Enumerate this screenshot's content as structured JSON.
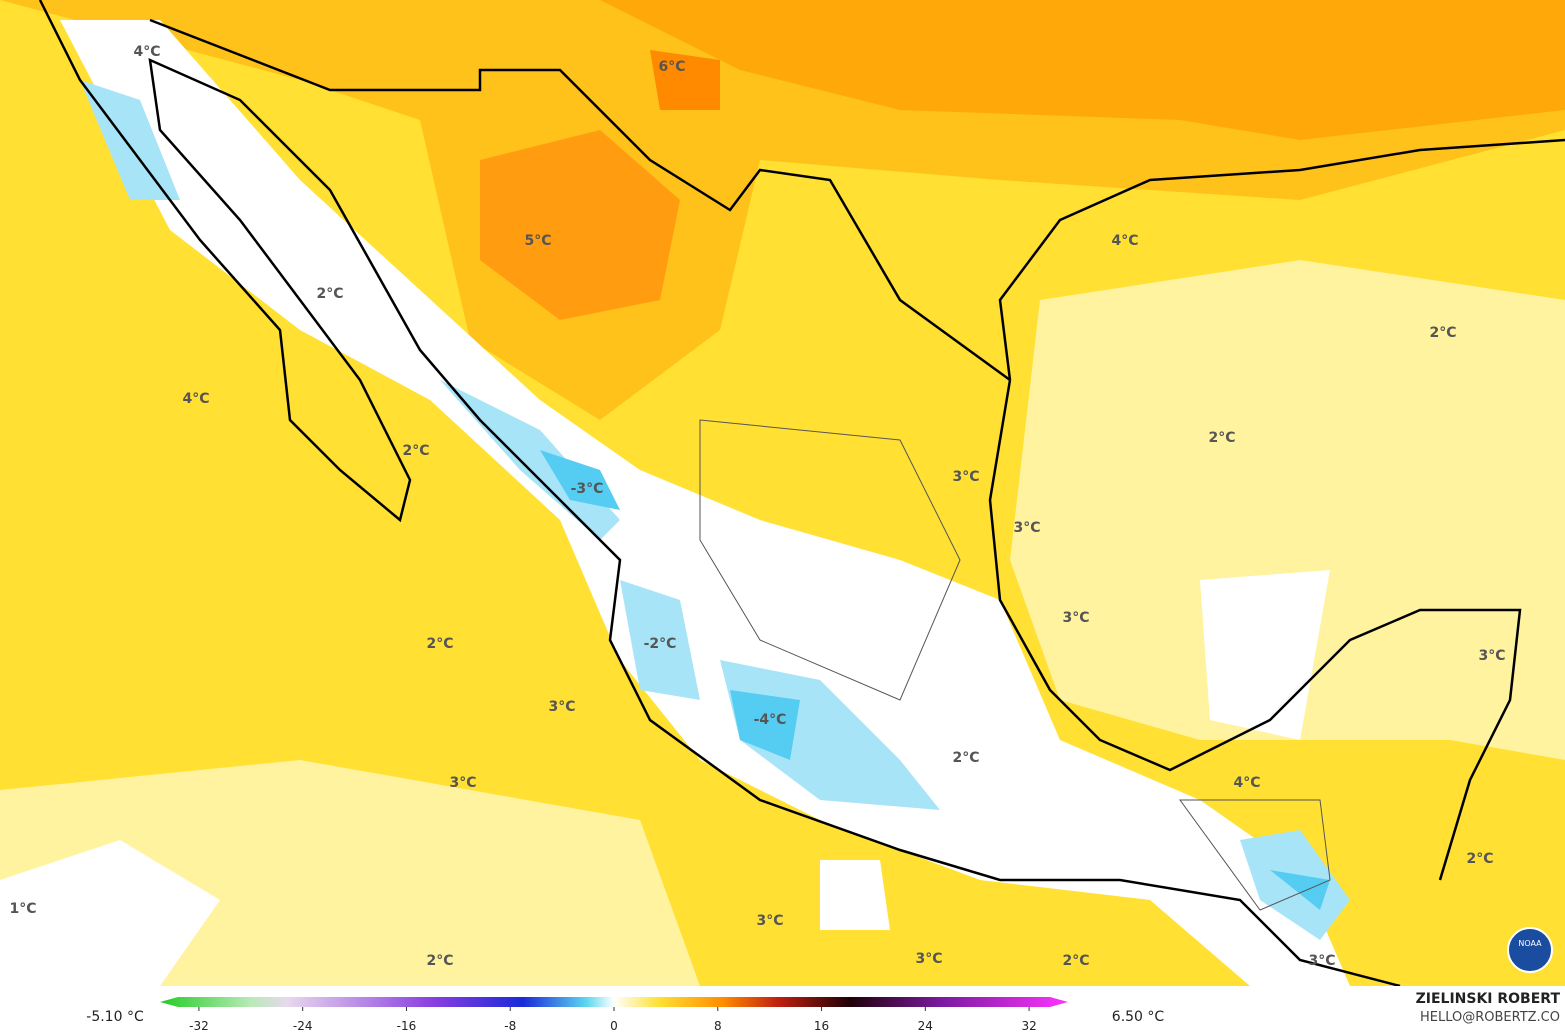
{
  "map": {
    "labels": [
      "4°C",
      "6°C",
      "5°C",
      "2°C",
      "4°C",
      "2°C",
      "-3°C",
      "4°C",
      "2°C",
      "2°C",
      "3°C",
      "3°C",
      "3°C",
      "2°C",
      "-2°C",
      "3°C",
      "-4°C",
      "2°C",
      "3°C",
      "4°C",
      "3°C",
      "2°C",
      "1°C",
      "3°C",
      "2°C",
      "3°C",
      "2°C",
      "3°C"
    ],
    "logo_text": "NOAA"
  },
  "colorbar": {
    "min_label": "-5.10 °C",
    "max_label": "6.50 °C",
    "range": [
      -35,
      35
    ],
    "ticks": [
      -32,
      -24,
      -16,
      -8,
      0,
      8,
      16,
      24,
      32
    ]
  },
  "credit": {
    "name": "ZIELINSKI ROBERT",
    "email": "HELLO@ROBERTZ.CO"
  }
}
